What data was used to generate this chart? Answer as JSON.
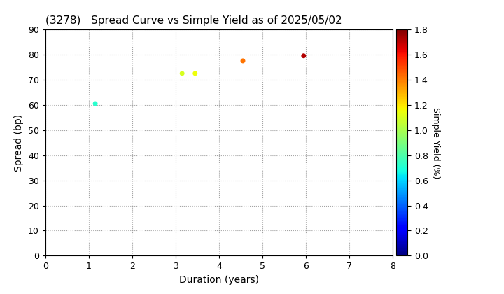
{
  "title": "(3278)   Spread Curve vs Simple Yield as of 2025/05/02",
  "xlabel": "Duration (years)",
  "ylabel": "Spread (bp)",
  "colorbar_label": "Simple Yield (%)",
  "xlim": [
    0,
    8
  ],
  "ylim": [
    0,
    90
  ],
  "xticks": [
    0,
    1,
    2,
    3,
    4,
    5,
    6,
    7,
    8
  ],
  "yticks": [
    0,
    10,
    20,
    30,
    40,
    50,
    60,
    70,
    80,
    90
  ],
  "colorbar_min": 0.0,
  "colorbar_max": 1.8,
  "colorbar_ticks": [
    0.0,
    0.2,
    0.4,
    0.6,
    0.8,
    1.0,
    1.2,
    1.4,
    1.6,
    1.8
  ],
  "points": [
    {
      "duration": 1.15,
      "spread": 60.5,
      "simple_yield": 0.72
    },
    {
      "duration": 3.15,
      "spread": 72.5,
      "simple_yield": 1.1
    },
    {
      "duration": 3.45,
      "spread": 72.5,
      "simple_yield": 1.15
    },
    {
      "duration": 4.55,
      "spread": 77.5,
      "simple_yield": 1.42
    },
    {
      "duration": 5.95,
      "spread": 79.5,
      "simple_yield": 1.72
    }
  ],
  "marker_size": 25,
  "background_color": "#ffffff",
  "grid_color": "#999999",
  "title_fontsize": 11,
  "axis_label_fontsize": 10,
  "tick_fontsize": 9,
  "colorbar_fontsize": 9
}
